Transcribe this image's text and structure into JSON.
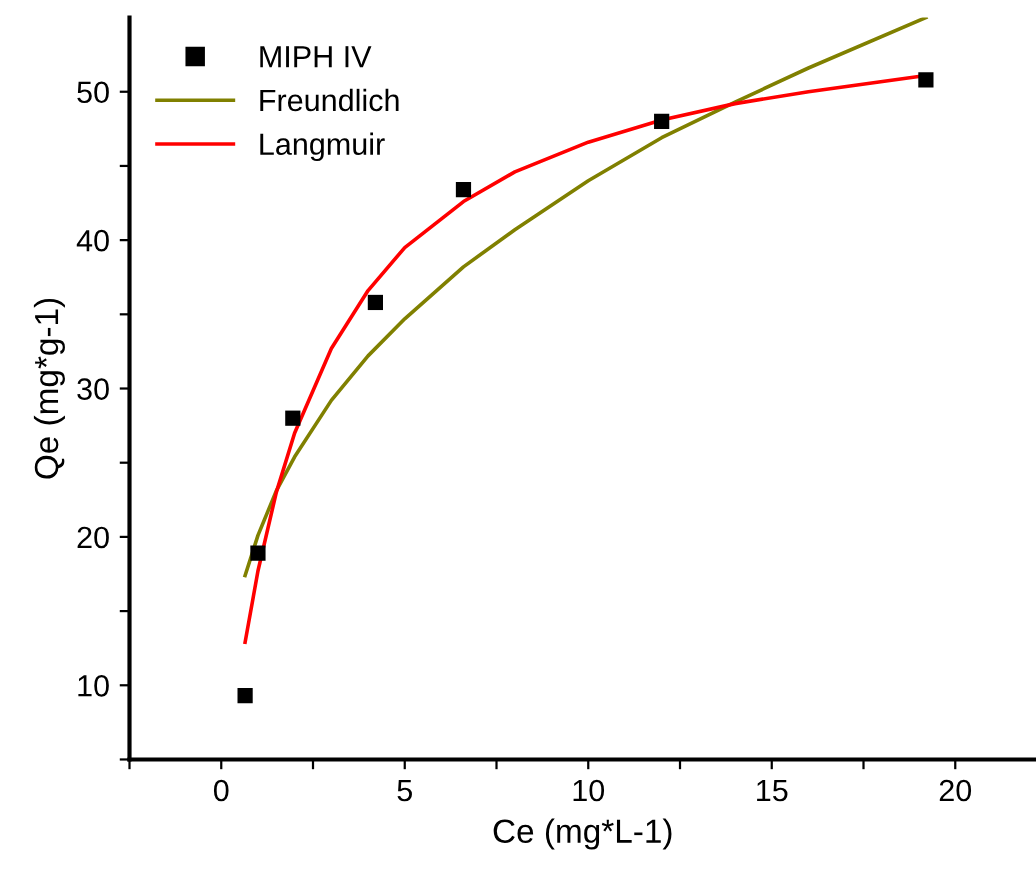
{
  "chart_data": {
    "type": "scatter",
    "xlabel": "Ce (mg*L-1)",
    "ylabel": "Qe (mg*g-1)",
    "xlim": [
      -2.5,
      22.2
    ],
    "ylim": [
      5,
      55
    ],
    "xticks": [
      {
        "value": -2.5,
        "label": null
      },
      0,
      {
        "value": 2.5,
        "label": null
      },
      5,
      {
        "value": 7.5,
        "label": null
      },
      10,
      {
        "value": 12.5,
        "label": null
      },
      15,
      {
        "value": 17.5,
        "label": null
      },
      20
    ],
    "yticks": [
      {
        "value": 5,
        "label": null
      },
      10,
      {
        "value": 15,
        "label": null
      },
      20,
      {
        "value": 25,
        "label": null
      },
      30,
      {
        "value": 35,
        "label": null
      },
      40,
      {
        "value": 45,
        "label": null
      },
      50
    ],
    "legend": "top left",
    "grid": false,
    "series": [
      {
        "name": "MIPH IV",
        "marker": "square",
        "color": "#000000",
        "x": [
          0.65,
          1.0,
          1.95,
          4.2,
          6.6,
          12.0,
          19.2
        ],
        "values": [
          9.3,
          18.9,
          28.0,
          35.8,
          43.4,
          48.0,
          50.8
        ]
      },
      {
        "name": "Freundlich",
        "type": "line",
        "marker": "none",
        "line_style": "solid",
        "color": "#808000",
        "x": [
          0.65,
          1,
          1.5,
          2,
          3,
          4,
          5,
          6.6,
          8,
          10,
          12,
          14,
          16,
          19.2
        ],
        "values": [
          17.4,
          20.1,
          23.1,
          25.4,
          29.2,
          32.2,
          34.7,
          38.2,
          40.7,
          44.0,
          46.9,
          49.3,
          51.6,
          55.0
        ]
      },
      {
        "name": "Langmuir",
        "type": "line",
        "marker": "none",
        "line_style": "solid",
        "color": "#ff0000",
        "x": [
          0.65,
          1,
          1.5,
          2,
          3,
          4,
          5,
          6.6,
          8,
          10,
          12,
          14,
          16,
          19.2
        ],
        "values": [
          12.9,
          17.7,
          23.0,
          27.0,
          32.7,
          36.6,
          39.5,
          42.6,
          44.6,
          46.6,
          48.1,
          49.2,
          50.0,
          51.1
        ]
      }
    ]
  }
}
